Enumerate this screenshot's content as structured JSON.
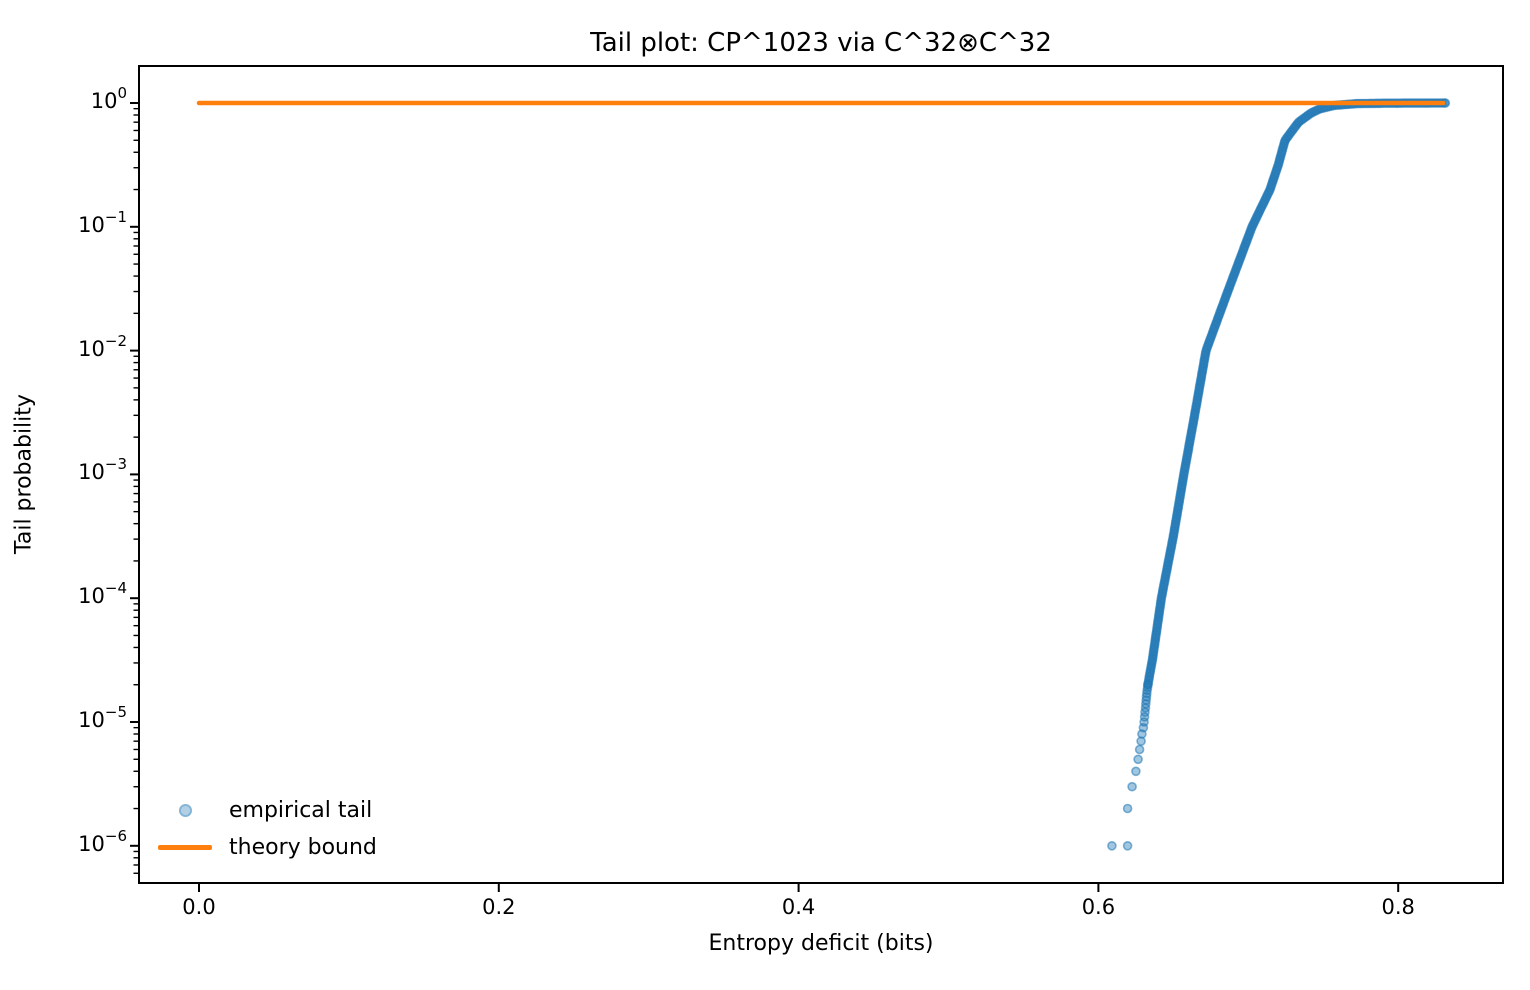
{
  "chart_data": {
    "type": "scatter",
    "title": "Tail plot: CP^1023 via C^32⊗C^32",
    "xlabel": "Entropy deficit (bits)",
    "ylabel": "Tail probability",
    "x_axis": {
      "tick_values": [
        0.0,
        0.2,
        0.4,
        0.6,
        0.8
      ],
      "tick_labels": [
        "0.0",
        "0.2",
        "0.4",
        "0.6",
        "0.8"
      ],
      "lim": [
        -0.0402,
        0.8702
      ],
      "scale": "linear",
      "grid": false
    },
    "y_axis": {
      "scale": "log",
      "tick_exponents": [
        0,
        -1,
        -2,
        -3,
        -4,
        -5,
        -6
      ],
      "lim_log10": [
        -6.3,
        0.3
      ],
      "minor_ticks": true,
      "grid": false
    },
    "series": [
      {
        "name": "empirical tail",
        "type": "scatter",
        "color": "#1f77b4",
        "alpha": 0.45,
        "x_range": [
          0.609,
          0.8315
        ],
        "curve_anchors_x_log10p": [
          [
            0.609,
            -6.0
          ],
          [
            0.6195,
            -5.699
          ],
          [
            0.6225,
            -5.523
          ],
          [
            0.625,
            -5.398
          ],
          [
            0.6265,
            -5.301
          ],
          [
            0.6275,
            -5.222
          ],
          [
            0.6285,
            -5.155
          ],
          [
            0.629,
            -5.097
          ],
          [
            0.63,
            -5.046
          ],
          [
            0.6305,
            -5.0
          ],
          [
            0.6315,
            -4.85
          ],
          [
            0.633,
            -4.699
          ],
          [
            0.636,
            -4.5
          ],
          [
            0.642,
            -4.0
          ],
          [
            0.65,
            -3.5
          ],
          [
            0.657,
            -3.0
          ],
          [
            0.6645,
            -2.5
          ],
          [
            0.6718,
            -2.0
          ],
          [
            0.687,
            -1.5
          ],
          [
            0.7025,
            -1.0
          ],
          [
            0.7145,
            -0.699
          ],
          [
            0.72,
            -0.5
          ],
          [
            0.7245,
            -0.301
          ],
          [
            0.7335,
            -0.155
          ],
          [
            0.742,
            -0.08
          ],
          [
            0.748,
            -0.046
          ],
          [
            0.757,
            -0.02
          ],
          [
            0.772,
            -0.005
          ],
          [
            0.79,
            -0.0017
          ],
          [
            0.8315,
            0.0
          ]
        ],
        "isolated_low_tail_points_x_log10p": [
          [
            0.609,
            -6.0
          ],
          [
            0.6195,
            -6.0
          ],
          [
            0.6195,
            -5.699
          ],
          [
            0.6225,
            -5.523
          ],
          [
            0.625,
            -5.398
          ],
          [
            0.6265,
            -5.301
          ],
          [
            0.6275,
            -5.222
          ],
          [
            0.6285,
            -5.155
          ],
          [
            0.629,
            -5.097
          ],
          [
            0.63,
            -5.046
          ],
          [
            0.6305,
            -5.0
          ],
          [
            0.6308,
            -4.959
          ],
          [
            0.6311,
            -4.921
          ],
          [
            0.6314,
            -4.886
          ],
          [
            0.6316,
            -4.854
          ],
          [
            0.6319,
            -4.824
          ],
          [
            0.6321,
            -4.796
          ],
          [
            0.6323,
            -4.77
          ],
          [
            0.6325,
            -4.745
          ],
          [
            0.6328,
            -4.721
          ],
          [
            0.633,
            -4.699
          ]
        ]
      },
      {
        "name": "theory bound",
        "type": "line",
        "color": "#ff7f0e",
        "y_value": 1.0,
        "x_start": 0.0,
        "x_end": 0.83,
        "linewidth": 4.5
      }
    ],
    "legend": {
      "position": "lower left",
      "frame": false,
      "entries": [
        {
          "label": "empirical tail",
          "marker": "dot",
          "color": "#1f77b4"
        },
        {
          "label": "theory bound",
          "marker": "line",
          "color": "#ff7f0e"
        }
      ]
    }
  }
}
